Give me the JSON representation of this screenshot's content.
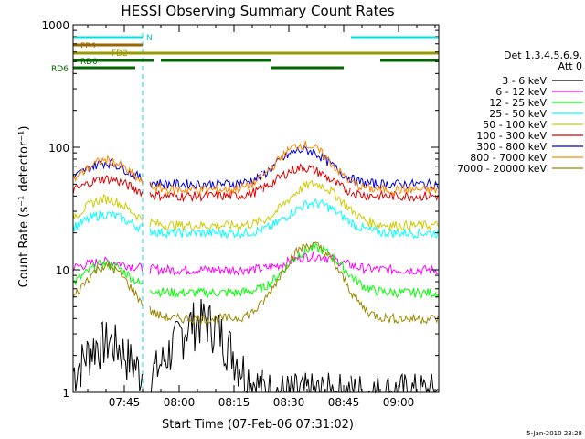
{
  "chart_data": {
    "type": "line",
    "title": "HESSI Observing Summary Count Rates",
    "xlabel": "Start Time (07-Feb-06 07:31:02)",
    "ylabel": "Count Rate (s⁻¹ detector⁻¹)",
    "y_scale": "log",
    "ylim": [
      1,
      1000
    ],
    "xlim_minutes": [
      "07:31",
      "09:11"
    ],
    "x_ticks": [
      "07:45",
      "08:00",
      "08:15",
      "08:30",
      "08:45",
      "09:00"
    ],
    "y_ticks": [
      "1",
      "10",
      "100",
      "1000"
    ],
    "legend_header": [
      "Det 1,3,4,5,6,9,",
      "Att 0"
    ],
    "legend_placement": "right",
    "timestamp": "5-Jan-2010 23:28",
    "night_markers": [
      {
        "start": "07:31",
        "end": "07:50",
        "label": "N"
      },
      {
        "start": "08:47",
        "end": "09:11",
        "label": ""
      }
    ],
    "flags": [
      {
        "label": "FD1",
        "color": "#996600",
        "segments": [
          [
            "07:31",
            "07:50"
          ]
        ]
      },
      {
        "label": "FD2",
        "color": "#999900",
        "segments": [
          [
            "07:31",
            "09:11"
          ]
        ]
      },
      {
        "label": "RD0",
        "color": "#006600",
        "segments": [
          [
            "07:31",
            "07:53"
          ],
          [
            "07:55",
            "08:25"
          ],
          [
            "08:55",
            "09:11"
          ]
        ]
      },
      {
        "label": "RD6",
        "color": "#006600",
        "segments": [
          [
            "07:31",
            "07:48"
          ],
          [
            "08:25",
            "08:45"
          ]
        ]
      }
    ],
    "series": [
      {
        "name": "3 - 6 keV",
        "color": "#000000",
        "peak_minute": 35,
        "peak": 4,
        "base": 1
      },
      {
        "name": "6 - 12 keV",
        "color": "#ff00ff",
        "peak_minute": 66,
        "peak": 13,
        "base": 10
      },
      {
        "name": "12 - 25 keV",
        "color": "#00ff00",
        "peak_minute": 66,
        "peak": 15,
        "base": 6.5
      },
      {
        "name": "25 - 50 keV",
        "color": "#00ffff",
        "peak_minute": 66,
        "peak": 35,
        "base": 20
      },
      {
        "name": "50 - 100 keV",
        "color": "#cccc00",
        "peak_minute": 66,
        "peak": 50,
        "base": 23
      },
      {
        "name": "100 - 300 keV",
        "color": "#dd0000",
        "peak_minute": 63,
        "peak": 68,
        "base": 40
      },
      {
        "name": "300 - 800 keV",
        "color": "#0000dd",
        "peak_minute": 63,
        "peak": 95,
        "base": 50
      },
      {
        "name": "800 - 7000 keV",
        "color": "#ff8800",
        "peak_minute": 63,
        "peak": 105,
        "base": 45
      },
      {
        "name": "7000 - 20000 keV",
        "color": "#998800",
        "peak_minute": 65,
        "peak": 16,
        "base": 4
      }
    ]
  }
}
